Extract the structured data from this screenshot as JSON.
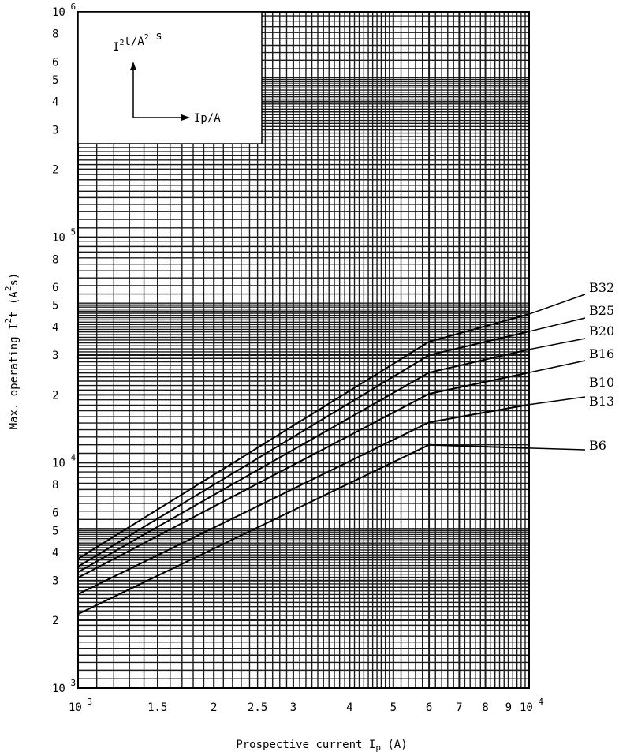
{
  "chart_data": {
    "type": "line",
    "title": "",
    "xlabel": "Prospective current I",
    "xlabel_sub": "p",
    "xlabel_unit": "(A)",
    "ylabel": "Max. operating I",
    "ylabel_sup": "2",
    "ylabel_mid": "t  (A",
    "ylabel_sup2": "2",
    "ylabel_end": "s)",
    "x_scale": "log",
    "y_scale": "log",
    "xlim": [
      1000,
      10000
    ],
    "ylim": [
      1000,
      1000000
    ],
    "grid": true,
    "x_ticks": [
      {
        "value": 1000,
        "base": "10",
        "exp": "3"
      },
      {
        "value": 1500,
        "label": "1.5"
      },
      {
        "value": 2000,
        "label": "2"
      },
      {
        "value": 2500,
        "label": "2.5"
      },
      {
        "value": 3000,
        "label": "3"
      },
      {
        "value": 4000,
        "label": "4"
      },
      {
        "value": 5000,
        "label": "5"
      },
      {
        "value": 6000,
        "label": "6"
      },
      {
        "value": 7000,
        "label": "7"
      },
      {
        "value": 8000,
        "label": "8"
      },
      {
        "value": 9000,
        "label": "9"
      },
      {
        "value": 10000,
        "base": "10",
        "exp": "4"
      }
    ],
    "y_ticks": [
      {
        "value": 1000,
        "base": "10",
        "exp": "3"
      },
      {
        "value": 2000,
        "label": "2"
      },
      {
        "value": 3000,
        "label": "3"
      },
      {
        "value": 4000,
        "label": "4"
      },
      {
        "value": 5000,
        "label": "5"
      },
      {
        "value": 6000,
        "label": "6"
      },
      {
        "value": 8000,
        "label": "8"
      },
      {
        "value": 10000,
        "base": "10",
        "exp": "4"
      },
      {
        "value": 20000,
        "label": "2"
      },
      {
        "value": 30000,
        "label": "3"
      },
      {
        "value": 40000,
        "label": "4"
      },
      {
        "value": 50000,
        "label": "5"
      },
      {
        "value": 60000,
        "label": "6"
      },
      {
        "value": 80000,
        "label": "8"
      },
      {
        "value": 100000,
        "base": "10",
        "exp": "5"
      },
      {
        "value": 200000,
        "label": "2"
      },
      {
        "value": 300000,
        "label": "3"
      },
      {
        "value": 400000,
        "label": "4"
      },
      {
        "value": 500000,
        "label": "5"
      },
      {
        "value": 600000,
        "label": "6"
      },
      {
        "value": 800000,
        "label": "8"
      },
      {
        "value": 1000000,
        "base": "10",
        "exp": "6"
      }
    ],
    "series": [
      {
        "name": "B32",
        "x": [
          1000,
          6000,
          10000
        ],
        "y": [
          3750,
          34400,
          45600
        ]
      },
      {
        "name": "B25",
        "x": [
          1000,
          6000,
          10000
        ],
        "y": [
          3460,
          30000,
          38200
        ]
      },
      {
        "name": "B20",
        "x": [
          1000,
          6000,
          10000
        ],
        "y": [
          3270,
          25100,
          31800
        ]
      },
      {
        "name": "B16",
        "x": [
          1000,
          6000,
          10000
        ],
        "y": [
          3090,
          20200,
          25100
        ]
      },
      {
        "name": "B13",
        "x": [
          1000,
          6000,
          10000
        ],
        "y": [
          2610,
          15100,
          18100
        ]
      },
      {
        "name": "B6",
        "x": [
          1000,
          6000,
          10000
        ],
        "y": [
          2130,
          12000,
          11600
        ]
      }
    ],
    "extra_labels": [
      "B10"
    ],
    "inset": {
      "y_axis": "I",
      "y_sup": "2",
      "y_rest": "t/A",
      "y_sup2": "2",
      "y_end": "s",
      "x_axis": "Ip/A"
    },
    "colors": {
      "line": "#000000",
      "grid": "#1a1a1a",
      "background": "#ffffff"
    }
  }
}
